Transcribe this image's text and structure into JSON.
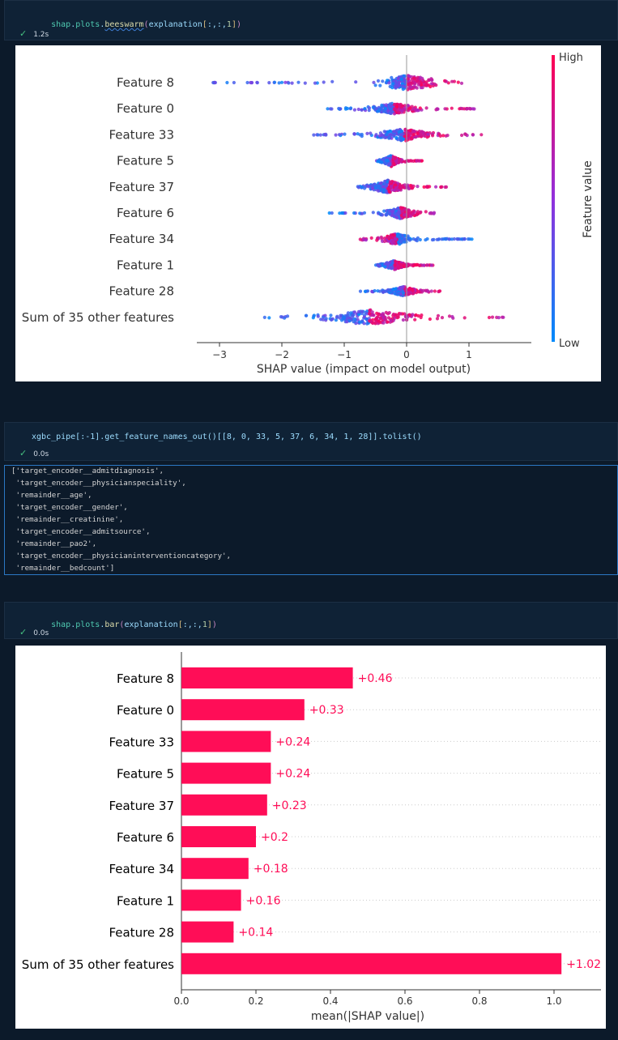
{
  "cells": [
    {
      "code": {
        "obj": "shap",
        "dot1": ".",
        "mod": "plots",
        "dot2": ".",
        "fn": "beeswarm",
        "open": "(",
        "arg": "explanation",
        "lb": "[",
        "idx1": ":,:,",
        "n": "1",
        "rb": "]",
        "close": ")"
      },
      "status": {
        "check": "✓",
        "time": "1.2s"
      }
    },
    {
      "code_text": "xgbc_pipe[:-1].get_feature_names_out()[[8, 0, 33, 5, 37, 6, 34, 1, 28]].tolist()",
      "status": {
        "check": "✓",
        "time": "0.0s"
      },
      "output_lines": [
        "['target_encoder__admitdiagnosis',",
        " 'target_encoder__physicianspeciality',",
        " 'remainder__age',",
        " 'target_encoder__gender',",
        " 'remainder__creatinine',",
        " 'target_encoder__admitsource',",
        " 'remainder__pao2',",
        " 'target_encoder__physicianinterventioncategory',",
        " 'remainder__bedcount']"
      ]
    },
    {
      "code": {
        "obj": "shap",
        "dot1": ".",
        "mod": "plots",
        "dot2": ".",
        "fn": "bar",
        "open": "(",
        "arg": "explanation",
        "lb": "[",
        "idx1": ":,:,",
        "n": "1",
        "rb": "]",
        "close": ")"
      },
      "status": {
        "check": "✓",
        "time": "0.0s"
      }
    }
  ],
  "chart_data": [
    {
      "type": "scatter",
      "categories": [
        "Feature 8",
        "Feature 0",
        "Feature 33",
        "Feature 5",
        "Feature 37",
        "Feature 6",
        "Feature 34",
        "Feature 1",
        "Feature 28",
        "Sum of 35 other features"
      ],
      "xlabel": "SHAP value (impact on model output)",
      "xticks": [
        -3,
        -2,
        -1,
        0,
        1
      ],
      "xlim": [
        -3.4,
        2.0
      ],
      "colorbar": {
        "label": "Feature value",
        "high": "High",
        "low": "Low",
        "low_color": "#008bfb",
        "high_color": "#ff0052"
      },
      "spread": [
        {
          "min": -3.15,
          "max": 0.95,
          "mean_abs": 0.46
        },
        {
          "min": -1.3,
          "max": 1.1,
          "mean_abs": 0.33
        },
        {
          "min": -1.5,
          "max": 1.2,
          "mean_abs": 0.24
        },
        {
          "min": -0.5,
          "max": 0.25,
          "mean_abs": 0.24
        },
        {
          "min": -0.8,
          "max": 0.65,
          "mean_abs": 0.23
        },
        {
          "min": -1.25,
          "max": 0.45,
          "mean_abs": 0.2
        },
        {
          "min": -0.75,
          "max": 1.05,
          "mean_abs": 0.18
        },
        {
          "min": -0.5,
          "max": 0.45,
          "mean_abs": 0.16
        },
        {
          "min": -0.75,
          "max": 0.55,
          "mean_abs": 0.14
        },
        {
          "min": -2.35,
          "max": 1.75,
          "mean_abs": 1.02
        }
      ]
    },
    {
      "type": "bar",
      "categories": [
        "Feature 8",
        "Feature 0",
        "Feature 33",
        "Feature 5",
        "Feature 37",
        "Feature 6",
        "Feature 34",
        "Feature 1",
        "Feature 28",
        "Sum of 35 other features"
      ],
      "values": [
        0.46,
        0.33,
        0.24,
        0.24,
        0.23,
        0.2,
        0.18,
        0.16,
        0.14,
        1.02
      ],
      "labels": [
        "+0.46",
        "+0.33",
        "+0.24",
        "+0.24",
        "+0.23",
        "+0.2",
        "+0.18",
        "+0.16",
        "+0.14",
        "+1.02"
      ],
      "xlabel": "mean(|SHAP value|)",
      "xticks": [
        "0.0",
        "0.2",
        "0.4",
        "0.6",
        "0.8",
        "1.0"
      ],
      "xlim": [
        0,
        1.12
      ],
      "bar_color": "#ff0d57"
    }
  ]
}
